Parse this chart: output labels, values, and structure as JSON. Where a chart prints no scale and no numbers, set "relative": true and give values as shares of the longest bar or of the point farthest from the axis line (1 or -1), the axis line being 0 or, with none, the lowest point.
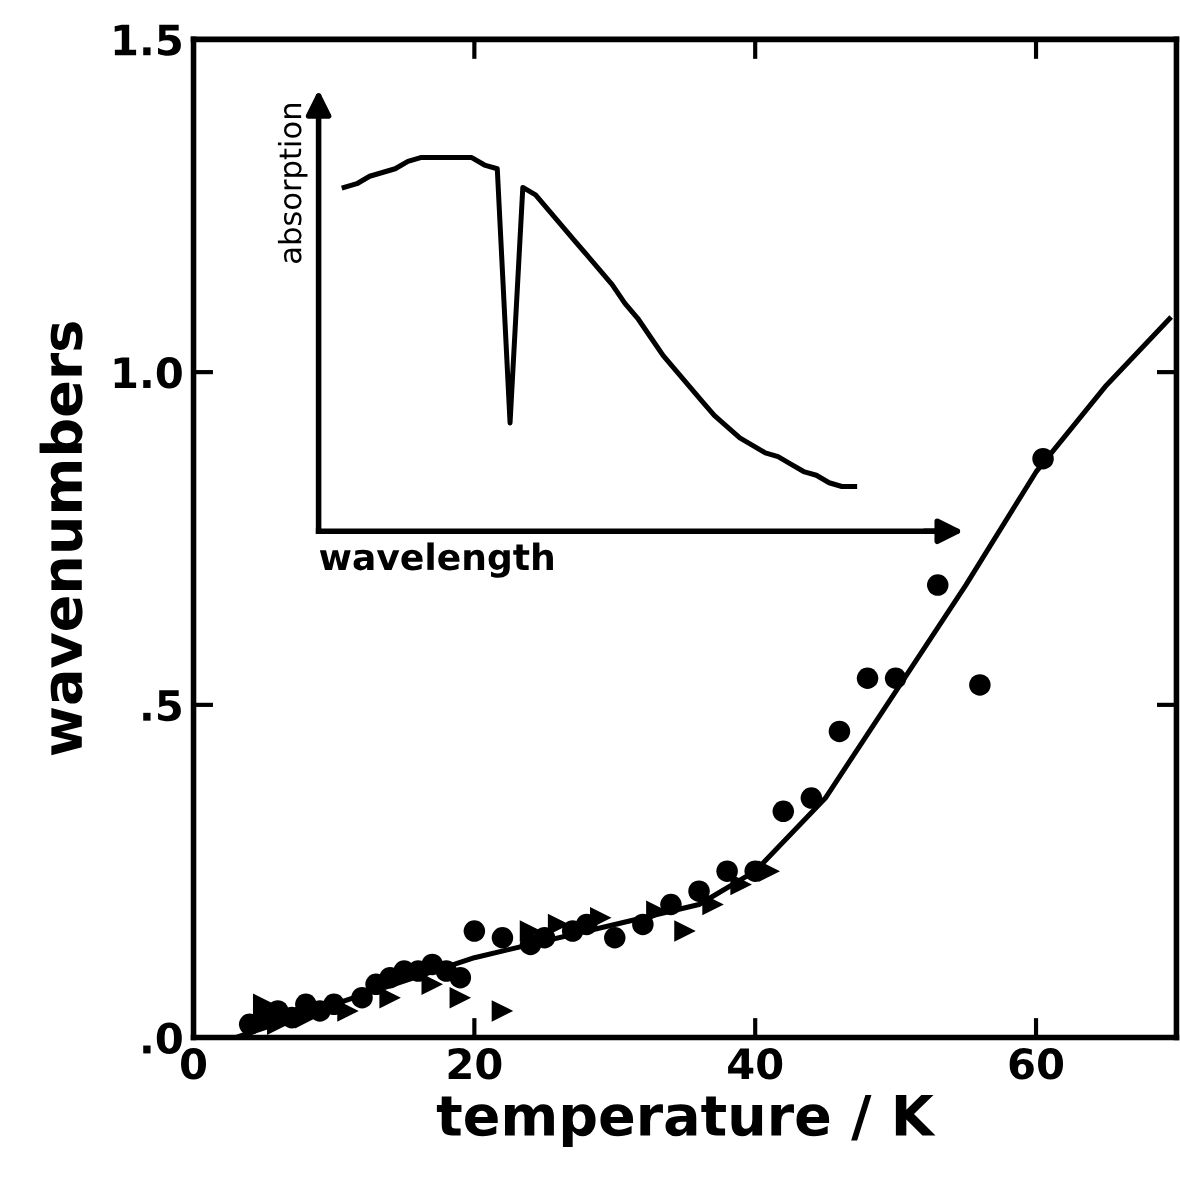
{
  "chart_data": [
    {
      "type": "scatter",
      "xlabel": "temperature / K",
      "ylabel": "wavenumbers",
      "xlim": [
        0,
        70
      ],
      "xticks": [
        0,
        20,
        40,
        60
      ],
      "ylim": [
        0,
        1.5
      ],
      "yticks": [
        {
          "value": 0,
          "label": ".0"
        },
        {
          "value": 0.5,
          "label": ".5"
        },
        {
          "value": 1.0,
          "label": "1.0"
        },
        {
          "value": 1.5,
          "label": "1.5"
        }
      ],
      "grid": false,
      "legend": false,
      "series": [
        {
          "type": "scatter",
          "marker": "circle",
          "color": "#000000",
          "x": [
            4,
            5,
            6,
            7,
            8,
            9,
            10,
            12,
            13,
            14,
            15,
            16,
            17,
            18,
            19,
            20,
            22,
            24,
            25,
            27,
            28,
            30,
            32,
            34,
            36,
            38,
            40,
            42,
            44,
            46,
            48,
            50,
            53,
            56,
            60.5
          ],
          "values": [
            0.02,
            0.03,
            0.04,
            0.03,
            0.05,
            0.04,
            0.05,
            0.06,
            0.08,
            0.09,
            0.1,
            0.1,
            0.11,
            0.1,
            0.09,
            0.16,
            0.15,
            0.14,
            0.15,
            0.16,
            0.17,
            0.15,
            0.17,
            0.2,
            0.22,
            0.25,
            0.25,
            0.34,
            0.36,
            0.46,
            0.54,
            0.54,
            0.68,
            0.53,
            0.87
          ]
        },
        {
          "type": "scatter",
          "marker": "triangle",
          "color": "#000000",
          "x": [
            5,
            6,
            8,
            11,
            14,
            17,
            19,
            22,
            24,
            26,
            29,
            33,
            35,
            37,
            39,
            41
          ],
          "values": [
            0.05,
            0.02,
            0.03,
            0.04,
            0.06,
            0.08,
            0.06,
            0.04,
            0.16,
            0.17,
            0.18,
            0.19,
            0.16,
            0.2,
            0.23,
            0.25
          ]
        },
        {
          "type": "line",
          "marker": "none",
          "line_style": "solid",
          "color": "#000000",
          "x": [
            3,
            10,
            20,
            30,
            36,
            40,
            45,
            50,
            55,
            60,
            65,
            69.5
          ],
          "values": [
            0,
            0.05,
            0.12,
            0.17,
            0.2,
            0.25,
            0.36,
            0.52,
            0.68,
            0.85,
            0.98,
            1.08
          ]
        }
      ]
    },
    {
      "type": "line",
      "relative": true,
      "xlabel": "wavelength",
      "ylabel": "absorption",
      "tick_labels": false,
      "grid": false,
      "legend": false,
      "categories": [
        null,
        null,
        null,
        null,
        null,
        null,
        null,
        null,
        null,
        null,
        null,
        null,
        null,
        null,
        null,
        null,
        null,
        null,
        null,
        null,
        null,
        null,
        null,
        null,
        null,
        null,
        null,
        null,
        null,
        null,
        null,
        null,
        null,
        null,
        null,
        null,
        null,
        null,
        null,
        null,
        null
      ],
      "series": [
        {
          "color": "#000000",
          "line_style": "solid",
          "marker": "none",
          "values": [
            0.92,
            0.93,
            0.95,
            0.96,
            0.97,
            0.99,
            1.0,
            1.0,
            1.0,
            1.0,
            1.0,
            0.98,
            0.97,
            0.29,
            0.92,
            0.9,
            0.86,
            0.82,
            0.78,
            0.74,
            0.7,
            0.66,
            0.61,
            0.57,
            0.52,
            0.47,
            0.43,
            0.39,
            0.35,
            0.31,
            0.28,
            0.25,
            0.23,
            0.21,
            0.2,
            0.18,
            0.16,
            0.15,
            0.13,
            0.12,
            0.12
          ]
        }
      ]
    }
  ]
}
